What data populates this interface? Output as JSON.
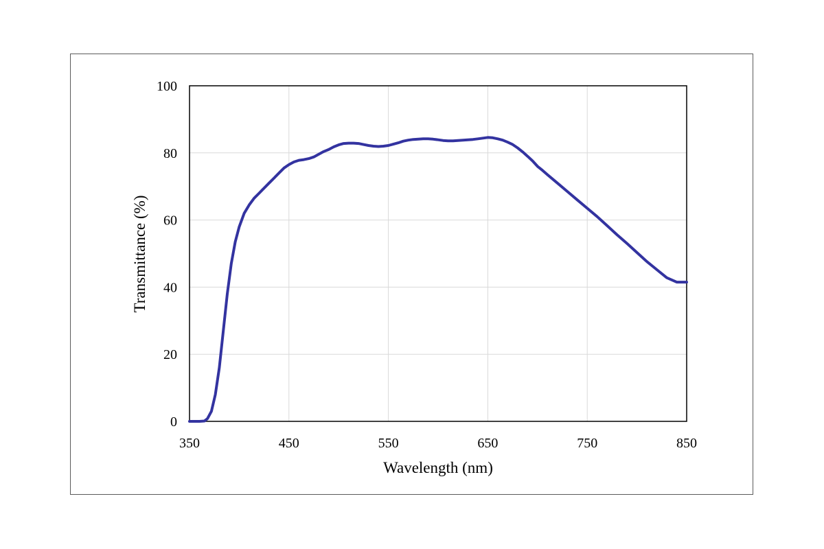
{
  "chart_data": {
    "type": "line",
    "title": "",
    "xlabel": "Wavelength (nm)",
    "ylabel": "Transmittance (%)",
    "xlim": [
      350,
      850
    ],
    "ylim": [
      0,
      100
    ],
    "xticks": [
      350,
      450,
      550,
      650,
      750,
      850
    ],
    "yticks": [
      0,
      20,
      40,
      60,
      80,
      100
    ],
    "x_tick_labels": [
      "350",
      "450",
      "550",
      "650",
      "750",
      "850"
    ],
    "y_tick_labels": [
      "0",
      "20",
      "40",
      "60",
      "80",
      "100"
    ],
    "grid": true,
    "legend": "none",
    "series": [
      {
        "color": "#3333A0",
        "x": [
          350,
          360,
          365,
          368,
          372,
          376,
          380,
          384,
          388,
          392,
          396,
          400,
          405,
          410,
          415,
          420,
          425,
          430,
          435,
          440,
          445,
          450,
          455,
          460,
          465,
          470,
          475,
          480,
          485,
          490,
          495,
          500,
          505,
          510,
          515,
          520,
          525,
          530,
          535,
          540,
          545,
          550,
          555,
          560,
          565,
          570,
          575,
          580,
          585,
          590,
          595,
          600,
          605,
          610,
          615,
          620,
          625,
          630,
          635,
          640,
          645,
          650,
          655,
          660,
          665,
          670,
          675,
          680,
          685,
          690,
          695,
          700,
          705,
          710,
          720,
          730,
          740,
          750,
          760,
          770,
          780,
          790,
          800,
          810,
          820,
          830,
          840,
          850
        ],
        "y": [
          0,
          0,
          0.1,
          0.8,
          3,
          8,
          16,
          27,
          38,
          47,
          53.5,
          58,
          62,
          64.5,
          66.5,
          68,
          69.5,
          71,
          72.5,
          74,
          75.5,
          76.5,
          77.3,
          77.8,
          78,
          78.3,
          78.8,
          79.6,
          80.4,
          81,
          81.8,
          82.4,
          82.8,
          82.9,
          82.9,
          82.8,
          82.5,
          82.2,
          82,
          81.9,
          82,
          82.2,
          82.6,
          83,
          83.5,
          83.8,
          84,
          84.1,
          84.2,
          84.2,
          84.1,
          83.9,
          83.7,
          83.6,
          83.6,
          83.7,
          83.8,
          83.9,
          84,
          84.2,
          84.4,
          84.6,
          84.5,
          84.2,
          83.8,
          83.2,
          82.5,
          81.5,
          80.3,
          79,
          77.6,
          76,
          74.8,
          73.5,
          71,
          68.5,
          66,
          63.5,
          61,
          58.3,
          55.6,
          53,
          50.3,
          47.6,
          45.2,
          42.8,
          41.5,
          41.5
        ]
      }
    ]
  }
}
